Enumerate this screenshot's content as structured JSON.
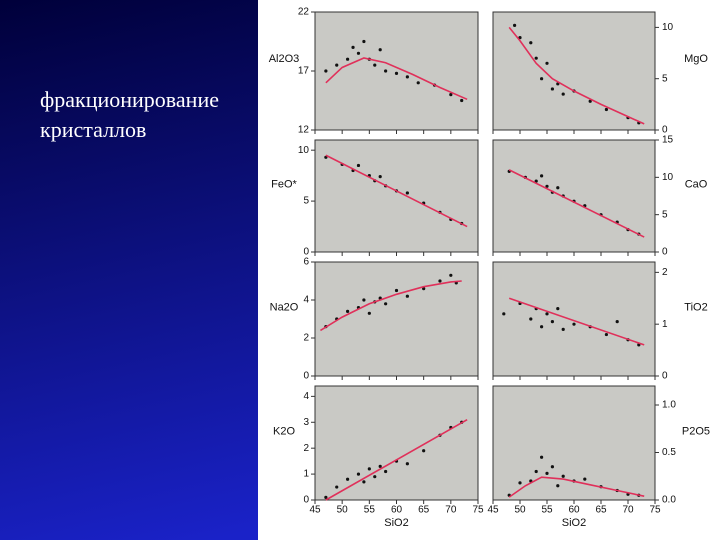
{
  "slide": {
    "text_lines": [
      "фракционирование",
      "кристаллов"
    ]
  },
  "chart_data": [
    {
      "type": "scatter",
      "y_label": "Al2O3",
      "xlim": [
        45,
        75
      ],
      "xticks": [
        45,
        50,
        55,
        60,
        65,
        70,
        75
      ],
      "ylim": [
        12,
        22
      ],
      "yticks": [
        12,
        17,
        22
      ],
      "color": "#111111",
      "x": [
        47,
        49,
        51,
        52,
        53,
        54,
        55,
        56,
        57,
        58,
        60,
        62,
        64,
        67,
        70,
        72
      ],
      "values": [
        17,
        17.5,
        18,
        19,
        18.5,
        19.5,
        18,
        17.5,
        18.8,
        17,
        16.8,
        16.5,
        16,
        15.8,
        15,
        14.5
      ],
      "trend_color": "#e0305a",
      "trend_x": [
        47,
        50,
        54,
        58,
        63,
        68,
        73
      ],
      "trend_values": [
        16,
        17.3,
        18.1,
        17.7,
        16.7,
        15.6,
        14.6
      ]
    },
    {
      "type": "scatter",
      "y_label": "MgO",
      "xlim": [
        45,
        75
      ],
      "xticks": [
        45,
        50,
        55,
        60,
        65,
        70,
        75
      ],
      "ylim": [
        0,
        11.5
      ],
      "yticks": [
        0,
        5,
        10
      ],
      "color": "#111111",
      "x": [
        49,
        50,
        52,
        53,
        54,
        55,
        56,
        57,
        58,
        60,
        63,
        66,
        70,
        72
      ],
      "values": [
        10.2,
        9,
        8.5,
        7,
        5,
        6.5,
        4,
        4.5,
        3.5,
        3.8,
        2.8,
        2,
        1.2,
        0.7
      ],
      "trend_color": "#e0305a",
      "trend_x": [
        48,
        50,
        53,
        56,
        60,
        65,
        70,
        73
      ],
      "trend_values": [
        10,
        8.7,
        6.5,
        5,
        3.8,
        2.5,
        1.3,
        0.6
      ]
    },
    {
      "type": "scatter",
      "y_label": "FeO*",
      "xlim": [
        45,
        75
      ],
      "xticks": [
        45,
        50,
        55,
        60,
        65,
        70,
        75
      ],
      "ylim": [
        0,
        11
      ],
      "yticks": [
        0,
        5,
        10
      ],
      "color": "#111111",
      "x": [
        47,
        50,
        52,
        53,
        55,
        56,
        57,
        58,
        60,
        62,
        65,
        68,
        70,
        72
      ],
      "values": [
        9.3,
        8.6,
        8,
        8.5,
        7.5,
        7,
        7.4,
        6.5,
        6,
        5.8,
        4.8,
        3.9,
        3.2,
        2.8
      ],
      "trend_color": "#e0305a",
      "trend_x": [
        47,
        73
      ],
      "trend_values": [
        9.5,
        2.5
      ]
    },
    {
      "type": "scatter",
      "y_label": "CaO",
      "xlim": [
        45,
        75
      ],
      "xticks": [
        45,
        50,
        55,
        60,
        65,
        70,
        75
      ],
      "ylim": [
        0,
        15
      ],
      "yticks": [
        0,
        5,
        10,
        15
      ],
      "color": "#111111",
      "x": [
        48,
        51,
        53,
        54,
        55,
        56,
        57,
        58,
        60,
        62,
        65,
        68,
        70,
        72
      ],
      "values": [
        10.8,
        10,
        9.5,
        10.2,
        8.8,
        8,
        8.6,
        7.5,
        6.8,
        6.2,
        5,
        4,
        3,
        2.4
      ],
      "trend_color": "#e0305a",
      "trend_x": [
        48,
        73
      ],
      "trend_values": [
        11,
        2
      ]
    },
    {
      "type": "scatter",
      "y_label": "Na2O",
      "xlim": [
        45,
        75
      ],
      "xticks": [
        45,
        50,
        55,
        60,
        65,
        70,
        75
      ],
      "ylim": [
        0,
        6
      ],
      "yticks": [
        0,
        2,
        4,
        6
      ],
      "color": "#111111",
      "x": [
        47,
        49,
        51,
        53,
        54,
        55,
        56,
        57,
        58,
        60,
        62,
        65,
        68,
        70,
        71
      ],
      "values": [
        2.6,
        3,
        3.4,
        3.6,
        4,
        3.3,
        3.9,
        4.1,
        3.8,
        4.5,
        4.2,
        4.6,
        5,
        5.3,
        4.9
      ],
      "trend_color": "#e0305a",
      "trend_x": [
        46,
        50,
        55,
        60,
        65,
        70,
        72
      ],
      "trend_values": [
        2.4,
        3.1,
        3.8,
        4.3,
        4.7,
        4.95,
        5
      ]
    },
    {
      "type": "scatter",
      "y_label": "TiO2",
      "xlim": [
        45,
        75
      ],
      "xticks": [
        45,
        50,
        55,
        60,
        65,
        70,
        75
      ],
      "ylim": [
        0,
        2.2
      ],
      "yticks": [
        0,
        1,
        2
      ],
      "color": "#111111",
      "x": [
        47,
        50,
        52,
        53,
        54,
        55,
        56,
        57,
        58,
        60,
        63,
        66,
        68,
        70,
        72
      ],
      "values": [
        1.2,
        1.4,
        1.1,
        1.3,
        0.95,
        1.2,
        1.05,
        1.3,
        0.9,
        1,
        0.95,
        0.8,
        1.05,
        0.7,
        0.6
      ],
      "trend_color": "#e0305a",
      "trend_x": [
        48,
        73
      ],
      "trend_values": [
        1.5,
        0.6
      ]
    },
    {
      "type": "scatter",
      "y_label": "K2O",
      "x_label": "SiO2",
      "xlim": [
        45,
        75
      ],
      "xticks": [
        45,
        50,
        55,
        60,
        65,
        70,
        75
      ],
      "ylim": [
        0,
        4.4
      ],
      "yticks": [
        0,
        1,
        2,
        3,
        4
      ],
      "color": "#111111",
      "x": [
        47,
        49,
        51,
        53,
        54,
        55,
        56,
        57,
        58,
        60,
        62,
        65,
        68,
        70,
        72
      ],
      "values": [
        0.1,
        0.5,
        0.8,
        1,
        0.7,
        1.2,
        0.9,
        1.3,
        1.1,
        1.5,
        1.4,
        1.9,
        2.5,
        2.8,
        3
      ],
      "trend_color": "#e0305a",
      "trend_x": [
        47,
        73
      ],
      "trend_values": [
        0,
        3.1
      ]
    },
    {
      "type": "scatter",
      "y_label": "P2O5",
      "x_label": "SiO2",
      "xlim": [
        45,
        75
      ],
      "xticks": [
        45,
        50,
        55,
        60,
        65,
        70,
        75
      ],
      "ylim": [
        0,
        1.2
      ],
      "yticks": [
        {
          "value": 0,
          "label": "0.0"
        },
        {
          "value": 0.5,
          "label": "0.5"
        },
        {
          "value": 1,
          "label": "1.0"
        }
      ],
      "color": "#111111",
      "x": [
        48,
        50,
        52,
        53,
        54,
        55,
        56,
        57,
        58,
        60,
        62,
        65,
        68,
        70,
        72
      ],
      "values": [
        0.05,
        0.18,
        0.2,
        0.3,
        0.45,
        0.28,
        0.35,
        0.15,
        0.25,
        0.2,
        0.22,
        0.14,
        0.1,
        0.06,
        0.05
      ],
      "trend_color": "#e0305a",
      "trend_x": [
        48,
        51,
        54,
        58,
        63,
        68,
        73
      ],
      "trend_values": [
        0.03,
        0.15,
        0.24,
        0.22,
        0.16,
        0.1,
        0.04
      ]
    }
  ]
}
